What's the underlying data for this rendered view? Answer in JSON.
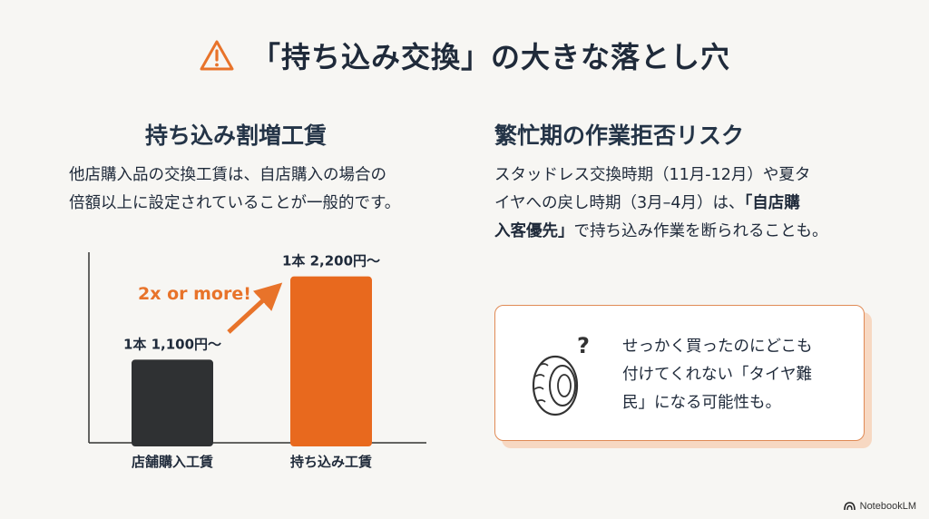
{
  "header": {
    "title": "「持ち込み交換」の大きな落とし穴",
    "icon": "warning-triangle-icon",
    "accent_color": "#e8732a"
  },
  "left": {
    "heading": "持ち込み割増工賃",
    "body_lines": [
      "他店購入品の交換工賃は、自店購入の場合の",
      "倍額以上に設定されていることが一般的です。"
    ]
  },
  "right": {
    "heading": "繁忙期の作業拒否リスク",
    "body_line1": "スタッドレス交換時期（11月-12月）や夏タ",
    "body_line2": "イヤへの戻し時期（3月–4月）は、",
    "body_bold1": "「自店購",
    "body_bold2": "入客優先」",
    "body_line3_rest": "で持ち込み作業を断られることも。"
  },
  "risk_box": {
    "icon": "tire-question-icon",
    "lines": [
      "せっかく買ったのにどこも",
      "付けてくれない「タイヤ難",
      "民」になる可能性も。"
    ]
  },
  "chart_data": {
    "type": "bar",
    "categories": [
      "店舗購入工賃",
      "持ち込み工賃"
    ],
    "values": [
      1100,
      2200
    ],
    "data_labels": [
      "1本 1,100円〜",
      "1本 2,200円〜"
    ],
    "colors": [
      "#2f3133",
      "#e8691e"
    ],
    "annotation": "2x or more!",
    "annotation_color": "#e8732a",
    "ylim": [
      0,
      2400
    ],
    "grid": false
  },
  "brand": {
    "label": "NotebookLM"
  }
}
